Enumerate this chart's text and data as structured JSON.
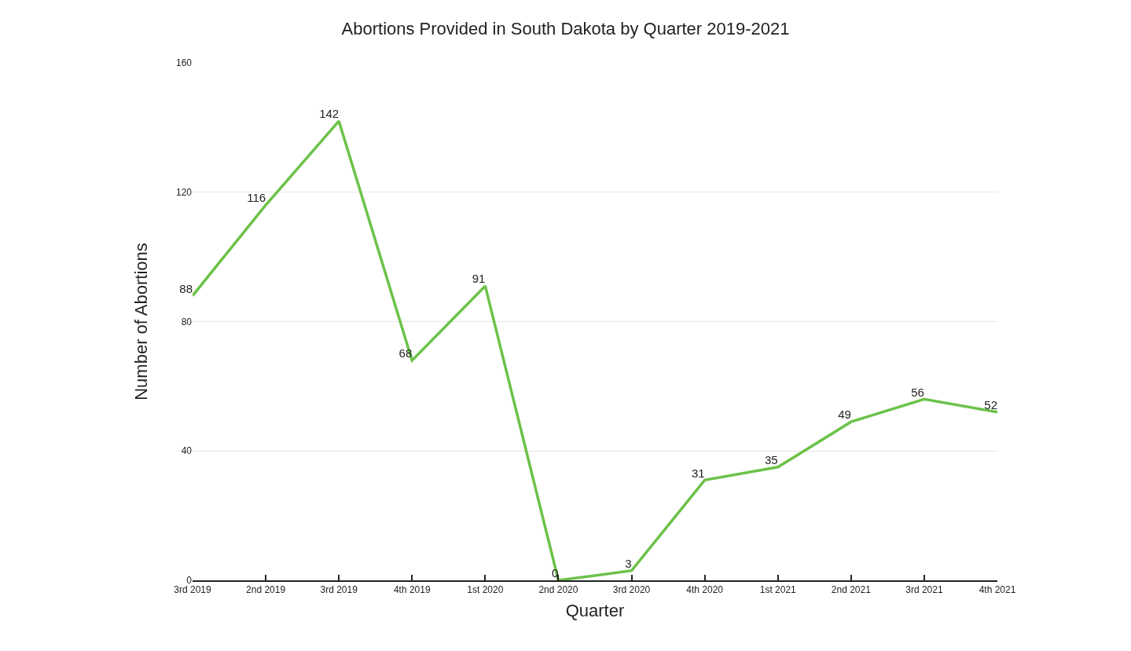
{
  "chart_data": {
    "type": "line",
    "title": "Abortions Provided in South Dakota by Quarter 2019-2021",
    "xlabel": "Quarter",
    "ylabel": "Number of Abortions",
    "categories": [
      "3rd 2019",
      "2nd 2019",
      "3rd 2019",
      "4th 2019",
      "1st 2020",
      "2nd 2020",
      "3rd 2020",
      "4th 2020",
      "1st 2021",
      "2nd 2021",
      "3rd 2021",
      "4th 2021"
    ],
    "series": [
      {
        "color": "#6cc24a",
        "values": [
          88,
          116,
          142,
          68,
          91,
          0,
          3,
          31,
          35,
          49,
          56,
          52
        ]
      }
    ],
    "ylim": [
      0,
      160
    ],
    "yticks": [
      0,
      40,
      80,
      120,
      160
    ],
    "grid": "y",
    "data_labels": true,
    "marker": "none",
    "line_style": "solid"
  }
}
